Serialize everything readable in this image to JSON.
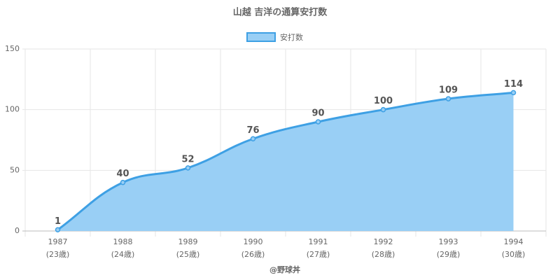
{
  "chart_data": {
    "type": "line",
    "title": "山越 吉洋の通算安打数",
    "categories": [
      [
        "1987",
        "(23歳)"
      ],
      [
        "1988",
        "(24歳)"
      ],
      [
        "1989",
        "(25歳)"
      ],
      [
        "1990",
        "(26歳)"
      ],
      [
        "1991",
        "(27歳)"
      ],
      [
        "1992",
        "(28歳)"
      ],
      [
        "1993",
        "(29歳)"
      ],
      [
        "1994",
        "(30歳)"
      ]
    ],
    "series": [
      {
        "name": "安打数",
        "color": "#3ea0e4",
        "fill": "#99cff5",
        "values": [
          1,
          40,
          52,
          76,
          90,
          100,
          109,
          114
        ]
      }
    ],
    "ylim": [
      0,
      150
    ],
    "yticks": [
      0,
      50,
      100,
      150
    ],
    "grid": true,
    "legend": "top",
    "data_labels": true,
    "credit": "@野球丼"
  }
}
